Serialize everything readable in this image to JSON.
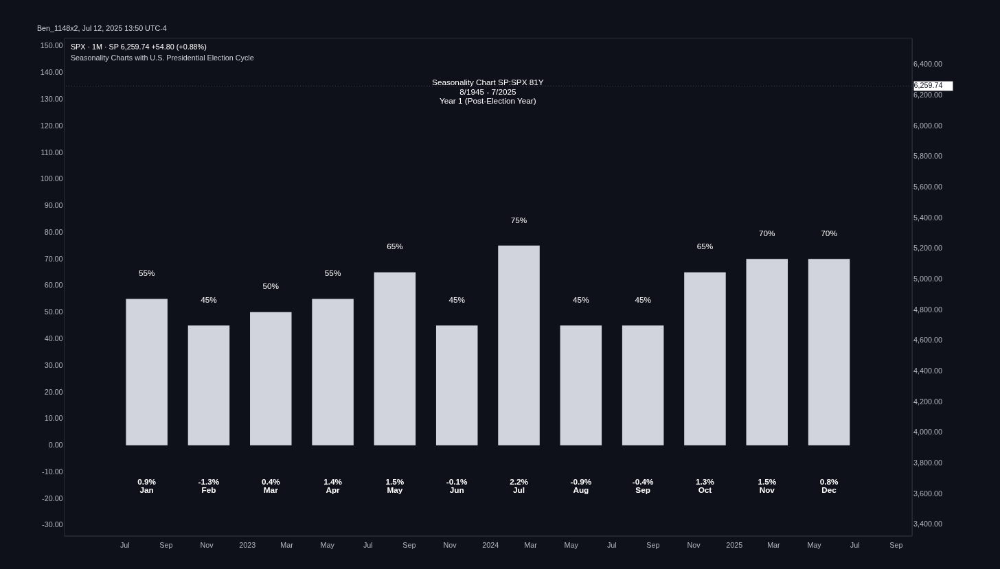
{
  "chart_data": {
    "type": "bar",
    "title": [
      "Seasonality Chart SP:SPX 81Y",
      "8/1945 - 7/2025",
      "Year 1 (Post-Election Year)"
    ],
    "categories": [
      "Jan",
      "Feb",
      "Mar",
      "Apr",
      "May",
      "Jun",
      "Jul",
      "Aug",
      "Sep",
      "Oct",
      "Nov",
      "Dec"
    ],
    "values": [
      55,
      45,
      50,
      55,
      65,
      45,
      75,
      45,
      45,
      65,
      70,
      70
    ],
    "value_labels": [
      "55%",
      "45%",
      "50%",
      "55%",
      "65%",
      "45%",
      "75%",
      "45%",
      "45%",
      "65%",
      "70%",
      "70%"
    ],
    "color": "#d1d4dc",
    "ylim": [
      -34,
      153
    ],
    "yticks": [
      {
        "value": -30,
        "label": "-30.00"
      },
      {
        "value": -20,
        "label": "-20.00"
      },
      {
        "value": -10,
        "label": "-10.00"
      },
      {
        "value": 0,
        "label": "0.00"
      },
      {
        "value": 10,
        "label": "10.00"
      },
      {
        "value": 20,
        "label": "20.00"
      },
      {
        "value": 30,
        "label": "30.00"
      },
      {
        "value": 40,
        "label": "40.00"
      },
      {
        "value": 50,
        "label": "50.00"
      },
      {
        "value": 60,
        "label": "60.00"
      },
      {
        "value": 70,
        "label": "70.00"
      },
      {
        "value": 80,
        "label": "80.00"
      },
      {
        "value": 90,
        "label": "90.00"
      },
      {
        "value": 100,
        "label": "100.00"
      },
      {
        "value": 110,
        "label": "110.00"
      },
      {
        "value": 120,
        "label": "120.00"
      },
      {
        "value": 130,
        "label": "130.00"
      },
      {
        "value": 140,
        "label": "140.00"
      },
      {
        "value": 150,
        "label": "150.00"
      }
    ],
    "y2lim": [
      3326,
      6573
    ],
    "y2ticks": [
      {
        "value": 3400,
        "label": "3,400.00"
      },
      {
        "value": 3600,
        "label": "3,600.00"
      },
      {
        "value": 3800,
        "label": "3,800.00"
      },
      {
        "value": 4000,
        "label": "4,000.00"
      },
      {
        "value": 4200,
        "label": "4,200.00"
      },
      {
        "value": 4400,
        "label": "4,400.00"
      },
      {
        "value": 4600,
        "label": "4,600.00"
      },
      {
        "value": 4800,
        "label": "4,800.00"
      },
      {
        "value": 5000,
        "label": "5,000.00"
      },
      {
        "value": 5200,
        "label": "5,200.00"
      },
      {
        "value": 5400,
        "label": "5,400.00"
      },
      {
        "value": 5600,
        "label": "5,600.00"
      },
      {
        "value": 5800,
        "label": "5,800.00"
      },
      {
        "value": 6000,
        "label": "6,000.00"
      },
      {
        "value": 6200,
        "label": "6,200.00"
      },
      {
        "value": 6400,
        "label": "6,400.00"
      }
    ],
    "x2lim": [
      "2022-04-01",
      "2025-09-25"
    ],
    "x2ticks": [
      {
        "value": "2022-07-01",
        "label": "Jul"
      },
      {
        "value": "2022-09-01",
        "label": "Sep"
      },
      {
        "value": "2022-11-01",
        "label": "Nov"
      },
      {
        "value": "2023-01-01",
        "label": "2023"
      },
      {
        "value": "2023-03-01",
        "label": "Mar"
      },
      {
        "value": "2023-05-01",
        "label": "May"
      },
      {
        "value": "2023-07-01",
        "label": "Jul"
      },
      {
        "value": "2023-09-01",
        "label": "Sep"
      },
      {
        "value": "2023-11-01",
        "label": "Nov"
      },
      {
        "value": "2024-01-01",
        "label": "2024"
      },
      {
        "value": "2024-03-01",
        "label": "Mar"
      },
      {
        "value": "2024-05-01",
        "label": "May"
      },
      {
        "value": "2024-07-01",
        "label": "Jul"
      },
      {
        "value": "2024-09-01",
        "label": "Sep"
      },
      {
        "value": "2024-11-01",
        "label": "Nov"
      },
      {
        "value": "2025-01-01",
        "label": "2025"
      },
      {
        "value": "2025-03-01",
        "label": "Mar"
      },
      {
        "value": "2025-05-01",
        "label": "May"
      },
      {
        "value": "2025-07-01",
        "label": "Jul"
      },
      {
        "value": "2025-09-01",
        "label": "Sep"
      }
    ],
    "ref_lines": [
      {
        "axis": "y2",
        "value": 6259.74,
        "label": "6,259.74",
        "color": "#ffffff"
      }
    ],
    "annotations": [
      "Ben_1148x2, Jul 12, 2025 13:50 UTC-4",
      "SPX · 1M · SP 6,259.74 +54.80 (+0.88%)",
      "Seasonality Charts with U.S. Presidential Election Cycle",
      "0.9%",
      "-1.3%",
      "0.4%",
      "1.4%",
      "1.5%",
      "-0.1%",
      "2.2%",
      "-0.9%",
      "-0.4%",
      "1.3%",
      "1.5%",
      "0.8%"
    ],
    "grid": false
  }
}
